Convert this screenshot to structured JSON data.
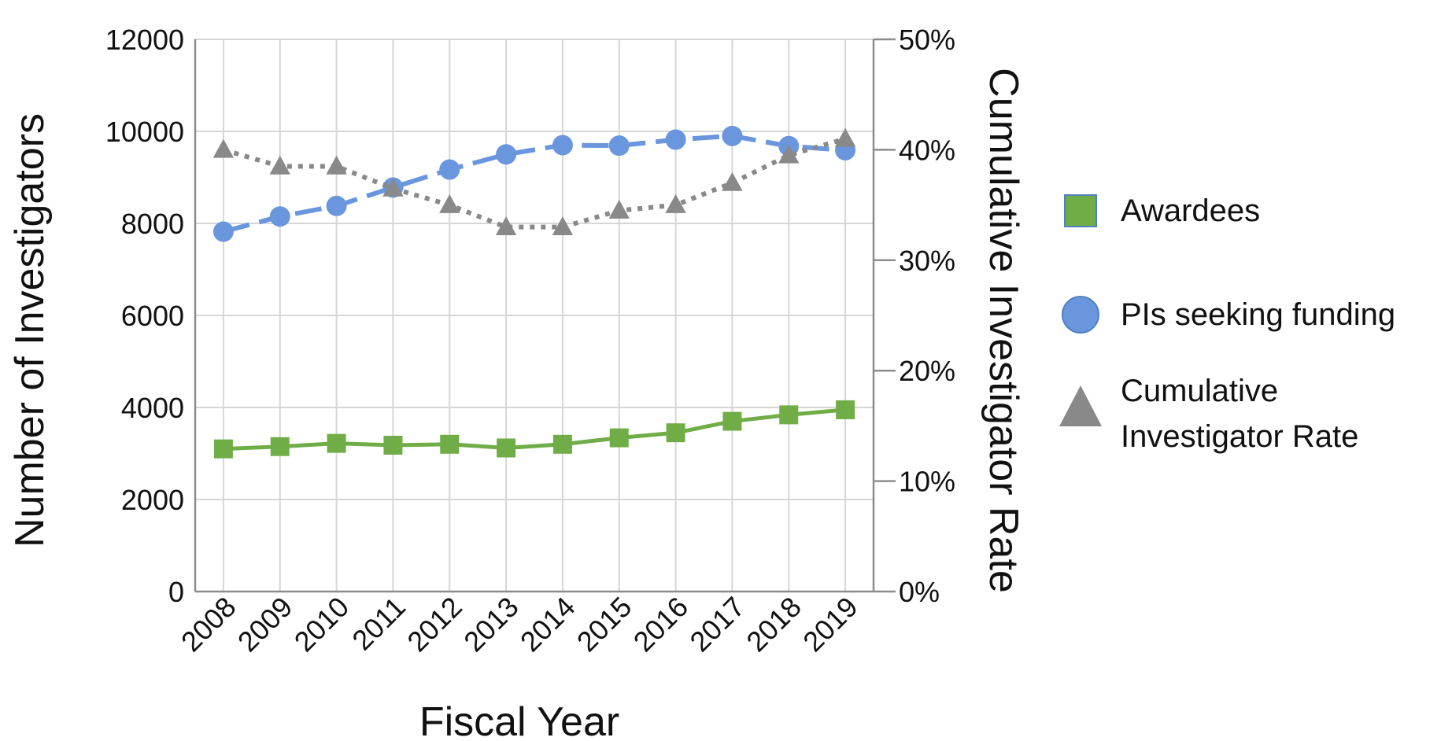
{
  "chart_data": {
    "type": "line",
    "title": "",
    "xlabel": "Fiscal Year",
    "ylabel": "Number of Investigators",
    "y2label": "Cumulative Investigator Rate",
    "categories": [
      "2008",
      "2009",
      "2010",
      "2011",
      "2012",
      "2013",
      "2014",
      "2015",
      "2016",
      "2017",
      "2018",
      "2019"
    ],
    "ylim": [
      0,
      12000
    ],
    "y2lim": [
      0,
      50
    ],
    "yticks": [
      "0",
      "2000",
      "4000",
      "6000",
      "8000",
      "10000",
      "12000"
    ],
    "y2ticks": [
      "0%",
      "10%",
      "20%",
      "30%",
      "40%",
      "50%"
    ],
    "grid": true,
    "legend_position": "right",
    "series": [
      {
        "name": "Awardees",
        "axis": "left",
        "marker": "square",
        "line": "solid",
        "color": "#70ad47",
        "values": [
          3100,
          3150,
          3220,
          3180,
          3200,
          3120,
          3200,
          3340,
          3450,
          3700,
          3840,
          3950
        ]
      },
      {
        "name": "PIs seeking funding",
        "axis": "left",
        "marker": "circle",
        "line": "dashed",
        "color": "#6a96de",
        "values": [
          7820,
          8150,
          8380,
          8780,
          9170,
          9500,
          9700,
          9690,
          9820,
          9900,
          9680,
          9590
        ]
      },
      {
        "name": "Cumulative Investigator Rate",
        "axis": "right",
        "marker": "triangle",
        "line": "dotted",
        "color": "#898989",
        "values": [
          40.0,
          38.5,
          38.5,
          36.5,
          35.0,
          33.0,
          33.0,
          34.5,
          35.0,
          37.0,
          39.5,
          41.0
        ]
      }
    ]
  }
}
